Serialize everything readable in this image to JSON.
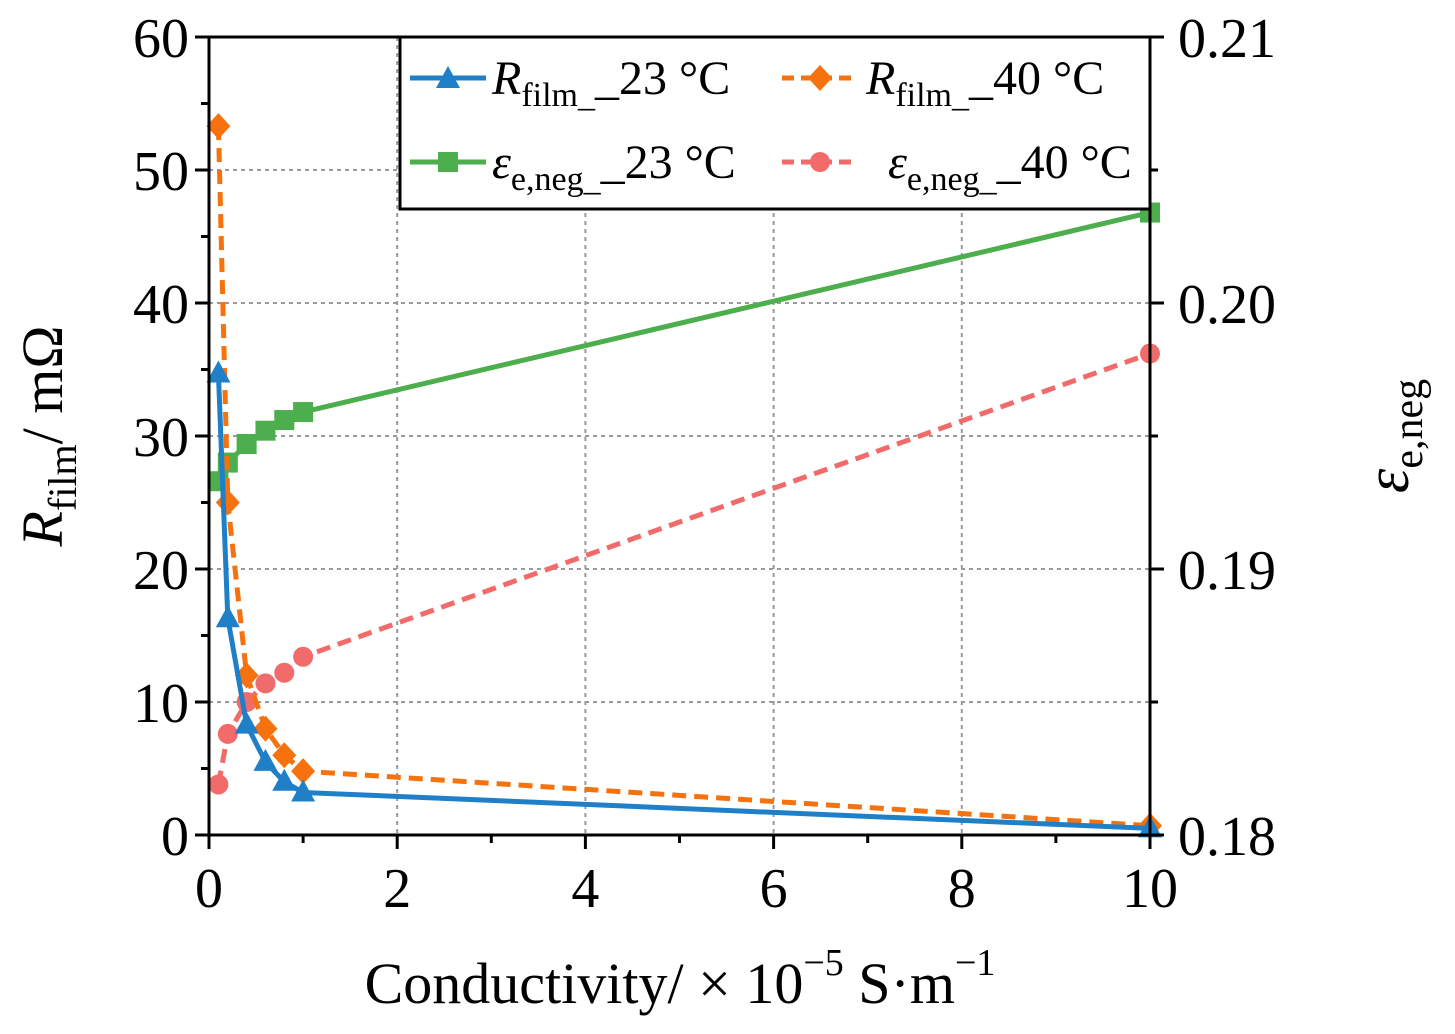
{
  "chart_data": {
    "type": "line",
    "xlabel": {
      "base": "Conductivity/ × 10",
      "exp1": "−5",
      "mid": " S·m",
      "exp2": "−1"
    },
    "ylabel_left": {
      "main": "R",
      "sub": "film",
      "rest": "/ mΩ"
    },
    "ylabel_right": {
      "main": "ε",
      "sub": "e,neg"
    },
    "xlim": [
      0,
      10
    ],
    "ylim_left": [
      0,
      60
    ],
    "ylim_right": [
      0.18,
      0.21
    ],
    "x_ticks": [
      0,
      2,
      4,
      6,
      8,
      10
    ],
    "x_tick_labels": [
      "0",
      "2",
      "4",
      "6",
      "8",
      "10"
    ],
    "y_left_ticks": [
      0,
      10,
      20,
      30,
      40,
      50,
      60
    ],
    "y_left_tick_labels": [
      "0",
      "10",
      "20",
      "30",
      "40",
      "50",
      "60"
    ],
    "y_right_ticks": [
      0.18,
      0.19,
      0.2,
      0.21
    ],
    "y_right_tick_labels": [
      "0.18",
      "0.19",
      "0.20",
      "0.21"
    ],
    "grid": true,
    "legend_position": "top-right",
    "series": [
      {
        "name": "R_film_23 °C",
        "legend": {
          "main": "R",
          "sub": "film_",
          "rest": "_23 °C"
        },
        "axis": "left",
        "color": "#1f7fc7",
        "dashed": false,
        "marker": "triangle",
        "x": [
          0.1,
          0.2,
          0.4,
          0.6,
          0.8,
          1.0,
          10
        ],
        "y": [
          34.7,
          16.3,
          8.3,
          5.5,
          4.0,
          3.2,
          0.5
        ]
      },
      {
        "name": "R_film_40 °C",
        "legend": {
          "main": "R",
          "sub": "film_",
          "rest": "_40 °C"
        },
        "axis": "left",
        "color": "#f5720e",
        "dashed": true,
        "marker": "diamond",
        "x": [
          0.1,
          0.2,
          0.4,
          0.6,
          0.8,
          1.0,
          10
        ],
        "y": [
          53.3,
          25.0,
          12.0,
          8.0,
          6.0,
          4.8,
          0.7
        ]
      },
      {
        "name": "ε_e,neg_23 °C",
        "legend": {
          "main": "ε",
          "sub": "e,neg_",
          "rest": "_23 °C"
        },
        "axis": "right",
        "color": "#4cae4c",
        "dashed": false,
        "marker": "square",
        "x": [
          0.1,
          0.2,
          0.4,
          0.6,
          0.8,
          1.0,
          10
        ],
        "y": [
          0.1933,
          0.194,
          0.1947,
          0.1952,
          0.1956,
          0.1959,
          0.2034
        ]
      },
      {
        "name": "ε_e,neg_40 °C",
        "legend": {
          "main": "ε",
          "sub": "e,neg_",
          "rest": "_40 °C"
        },
        "axis": "right",
        "color": "#f26b6b",
        "dashed": true,
        "marker": "circle",
        "x": [
          0.1,
          0.2,
          0.4,
          0.6,
          0.8,
          1.0,
          10
        ],
        "y": [
          0.1819,
          0.1838,
          0.185,
          0.1857,
          0.1861,
          0.1867,
          0.1981
        ]
      }
    ]
  }
}
